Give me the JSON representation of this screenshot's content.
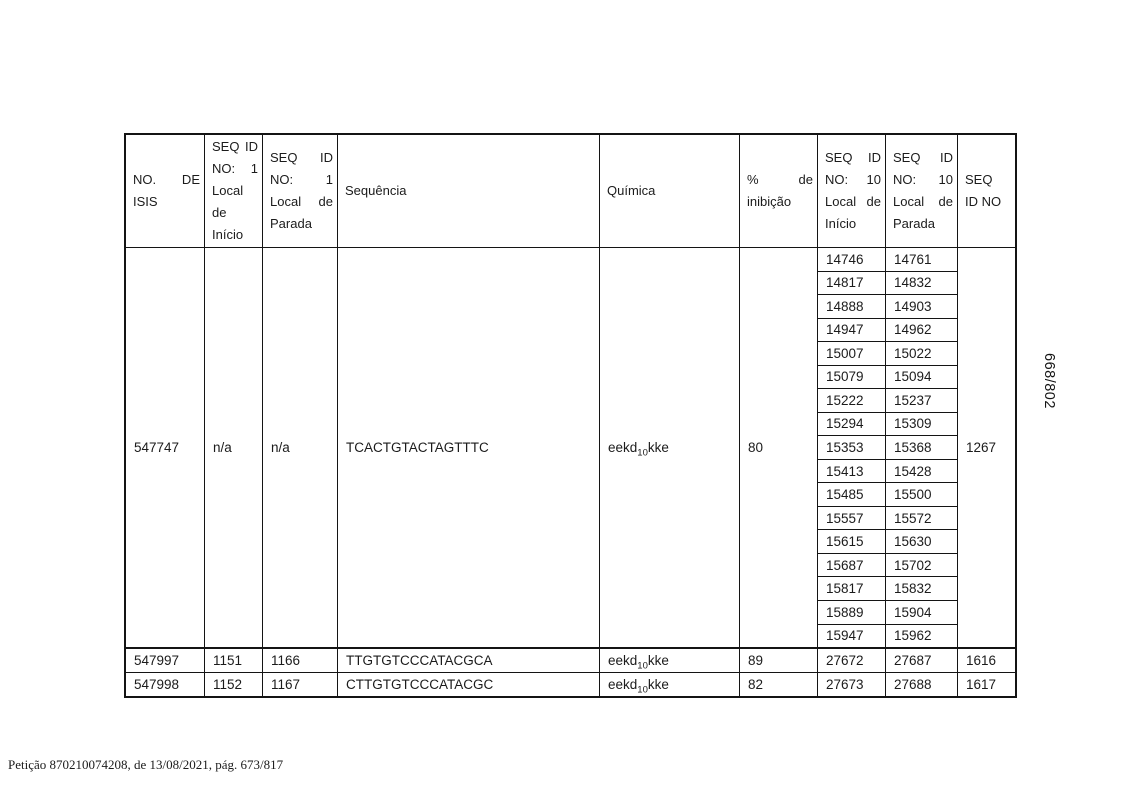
{
  "document": {
    "side_page_number": "668/802",
    "footer_text": "Petição 870210074208, de 13/08/2021, pág. 673/817"
  },
  "table": {
    "headers": [
      "NO. DE ISIS",
      "SEQ ID NO: 1 Local de Início",
      "SEQ ID NO: 1 Local de Parada",
      "Sequência",
      "Química",
      "% de inibição",
      "SEQ ID NO: 10 Local de Início",
      "SEQ ID NO: 10 Local de Parada",
      "SEQ ID NO"
    ],
    "main_row": {
      "isis_no": "547747",
      "seq1_start": "n/a",
      "seq1_stop": "n/a",
      "sequence": "TCACTGTACTAGTTTC",
      "chemistry_pre": "eekd",
      "chemistry_sub": "10",
      "chemistry_post": "kke",
      "inhibition_pct": "80",
      "seq_id_no": "1267",
      "seq10_sites": [
        {
          "start": "14746",
          "stop": "14761"
        },
        {
          "start": "14817",
          "stop": "14832"
        },
        {
          "start": "14888",
          "stop": "14903"
        },
        {
          "start": "14947",
          "stop": "14962"
        },
        {
          "start": "15007",
          "stop": "15022"
        },
        {
          "start": "15079",
          "stop": "15094"
        },
        {
          "start": "15222",
          "stop": "15237"
        },
        {
          "start": "15294",
          "stop": "15309"
        },
        {
          "start": "15353",
          "stop": "15368"
        },
        {
          "start": "15413",
          "stop": "15428"
        },
        {
          "start": "15485",
          "stop": "15500"
        },
        {
          "start": "15557",
          "stop": "15572"
        },
        {
          "start": "15615",
          "stop": "15630"
        },
        {
          "start": "15687",
          "stop": "15702"
        },
        {
          "start": "15817",
          "stop": "15832"
        },
        {
          "start": "15889",
          "stop": "15904"
        },
        {
          "start": "15947",
          "stop": "15962"
        }
      ]
    },
    "rows": [
      {
        "isis_no": "547997",
        "seq1_start": "1151",
        "seq1_stop": "1166",
        "sequence": "TTGTGTCCCATACGCA",
        "chemistry_pre": "eekd",
        "chemistry_sub": "10",
        "chemistry_post": "kke",
        "inhibition_pct": "89",
        "seq10_start": "27672",
        "seq10_stop": "27687",
        "seq_id_no": "1616"
      },
      {
        "isis_no": "547998",
        "seq1_start": "1152",
        "seq1_stop": "1167",
        "sequence": "CTTGTGTCCCATACGC",
        "chemistry_pre": "eekd",
        "chemistry_sub": "10",
        "chemistry_post": "kke",
        "inhibition_pct": "82",
        "seq10_start": "27673",
        "seq10_stop": "27688",
        "seq_id_no": "1617"
      }
    ]
  }
}
